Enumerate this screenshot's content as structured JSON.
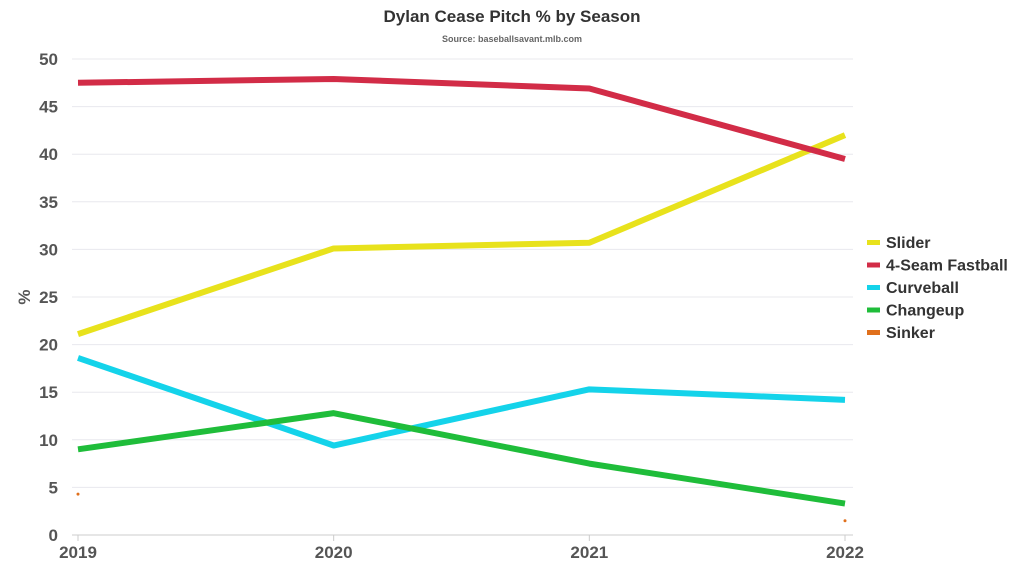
{
  "chart_data": {
    "type": "line",
    "title": "Dylan Cease Pitch % by Season",
    "subtitle": "Source: baseballsavant.mlb.com",
    "xlabel": "",
    "ylabel": "%",
    "x": [
      "2019",
      "2020",
      "2021",
      "2022"
    ],
    "ylim": [
      0,
      50
    ],
    "yticks": [
      "0",
      "5",
      "10",
      "15",
      "20",
      "25",
      "30",
      "35",
      "40",
      "45",
      "50"
    ],
    "grid": true,
    "legend_position": "right",
    "series": [
      {
        "name": "Slider",
        "color": "#e8e21c",
        "values": [
          21.1,
          30.1,
          30.7,
          42.0
        ]
      },
      {
        "name": "4-Seam Fastball",
        "color": "#d22c47",
        "values": [
          47.5,
          47.9,
          46.9,
          39.5
        ]
      },
      {
        "name": "Curveball",
        "color": "#14d3ea",
        "values": [
          18.6,
          9.4,
          15.3,
          14.2
        ]
      },
      {
        "name": "Changeup",
        "color": "#1fbd3a",
        "values": [
          9.0,
          12.8,
          7.5,
          3.3
        ]
      },
      {
        "name": "Sinker",
        "color": "#e0701c",
        "values": [
          4.3,
          null,
          null,
          1.5
        ]
      }
    ]
  }
}
